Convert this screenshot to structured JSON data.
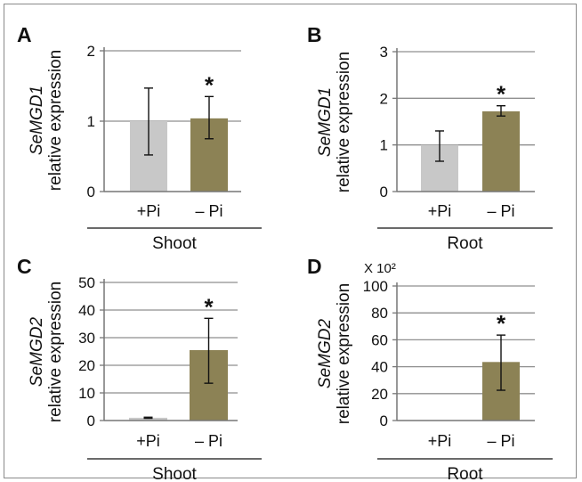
{
  "colors": {
    "plus_pi": "#c8c8c8",
    "minus_pi": "#8c8255",
    "grid": "#8f8f8f",
    "axis": "#777777",
    "error": "#111111"
  },
  "chart_data": [
    {
      "panel": "A",
      "type": "bar",
      "ylabel_gene": "SeMGD1",
      "ylabel_suffix": "relative expression",
      "categories": [
        "+Pi",
        "– Pi"
      ],
      "values": [
        1.0,
        1.04
      ],
      "errors": [
        [
          0.52,
          1.47
        ],
        [
          0.75,
          1.35
        ]
      ],
      "significant": [
        "",
        "*"
      ],
      "ylim": [
        0,
        2
      ],
      "yticks": [
        "0",
        "1",
        "2"
      ],
      "multiplier": "",
      "group_label": "Shoot",
      "grid": true
    },
    {
      "panel": "B",
      "type": "bar",
      "ylabel_gene": "SeMGD1",
      "ylabel_suffix": "relative expression",
      "categories": [
        "+Pi",
        "– Pi"
      ],
      "values": [
        1.0,
        1.72
      ],
      "errors": [
        [
          0.65,
          1.3
        ],
        [
          1.62,
          1.84
        ]
      ],
      "significant": [
        "",
        "*"
      ],
      "ylim": [
        0,
        3
      ],
      "yticks": [
        "0",
        "1",
        "2",
        "3"
      ],
      "multiplier": "",
      "group_label": "Root",
      "grid": true
    },
    {
      "panel": "C",
      "type": "bar",
      "ylabel_gene": "SeMGD2",
      "ylabel_suffix": "relative expression",
      "categories": [
        "+Pi",
        "– Pi"
      ],
      "values": [
        1.0,
        25.5
      ],
      "errors": [
        [
          0.8,
          1.2
        ],
        [
          13.5,
          37
        ]
      ],
      "significant": [
        "",
        "*"
      ],
      "ylim": [
        0,
        50
      ],
      "yticks": [
        "0",
        "10",
        "20",
        "30",
        "40",
        "50"
      ],
      "multiplier": "",
      "group_label": "Shoot",
      "grid": true
    },
    {
      "panel": "D",
      "type": "bar",
      "ylabel_gene": "SeMGD2",
      "ylabel_suffix": "relative expression",
      "categories": [
        "+Pi",
        "– Pi"
      ],
      "values": [
        0,
        43.5
      ],
      "errors": [
        null,
        [
          22.5,
          63.5
        ]
      ],
      "significant": [
        "",
        "*"
      ],
      "ylim": [
        0,
        100
      ],
      "yticks": [
        "0",
        "20",
        "40",
        "60",
        "80",
        "100"
      ],
      "multiplier": "X 10²",
      "group_label": "Root",
      "grid": true
    }
  ]
}
